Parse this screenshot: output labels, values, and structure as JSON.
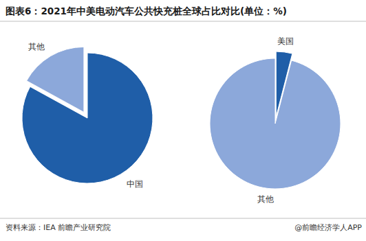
{
  "title": "图表6：2021年中美电动汽车公共快充桩全球占比对比(单位：%)",
  "source": "资料来源：IEA 前瞻产业研究院",
  "credit": "@前瞻经济学人APP",
  "chart_data": [
    {
      "type": "pie",
      "categories": [
        "中国",
        "其他"
      ],
      "values": [
        83,
        17
      ],
      "colors": [
        "#1f5ea8",
        "#8ca8da"
      ]
    },
    {
      "type": "pie",
      "categories": [
        "美国",
        "其他"
      ],
      "values": [
        4,
        96
      ],
      "colors": [
        "#1f5ea8",
        "#8ca8da"
      ]
    }
  ]
}
